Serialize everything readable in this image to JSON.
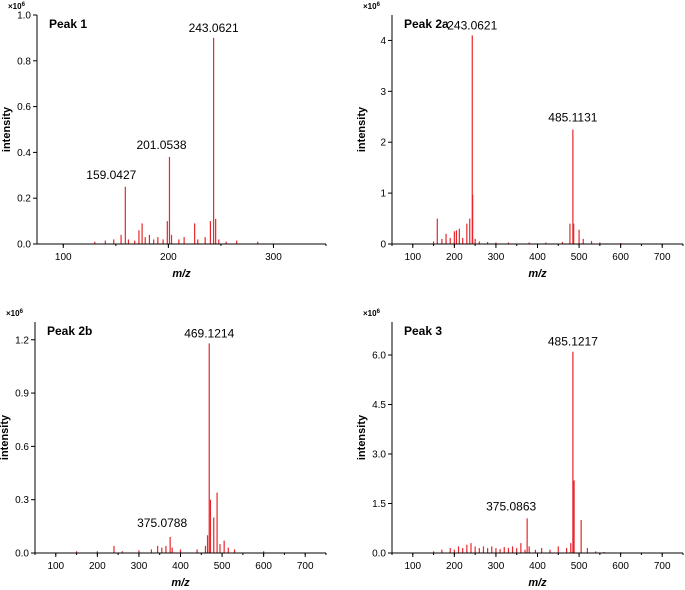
{
  "chart_data": [
    {
      "type": "bar",
      "title": "Peak 1",
      "multiplier": "×10",
      "multiplier_exp": "6",
      "xlabel": "m/z",
      "ylabel": "intensity",
      "xlim": [
        75,
        350
      ],
      "ylim": [
        0,
        1.0
      ],
      "xticks": [
        100,
        200,
        300
      ],
      "yticks": [
        0.0,
        0.2,
        0.4,
        0.6,
        0.8,
        1.0
      ],
      "ytick_labels": [
        "0.0",
        "0.2",
        "0.4",
        "0.6",
        "0.8",
        "1.0"
      ],
      "color": "#e8262a",
      "peaks": [
        [
          130,
          0.01
        ],
        [
          140,
          0.015
        ],
        [
          148,
          0.02
        ],
        [
          155,
          0.04
        ],
        [
          159.0427,
          0.25
        ],
        [
          162,
          0.02
        ],
        [
          168,
          0.015
        ],
        [
          172,
          0.06
        ],
        [
          175,
          0.09
        ],
        [
          178,
          0.03
        ],
        [
          182,
          0.04
        ],
        [
          186,
          0.02
        ],
        [
          190,
          0.03
        ],
        [
          195,
          0.02
        ],
        [
          199,
          0.1
        ],
        [
          201.0538,
          0.38
        ],
        [
          203,
          0.04
        ],
        [
          210,
          0.02
        ],
        [
          215,
          0.03
        ],
        [
          225,
          0.09
        ],
        [
          228,
          0.02
        ],
        [
          235,
          0.03
        ],
        [
          240,
          0.1
        ],
        [
          243.0621,
          0.9
        ],
        [
          245,
          0.11
        ],
        [
          248,
          0.02
        ],
        [
          255,
          0.01
        ],
        [
          265,
          0.015
        ],
        [
          285,
          0.01
        ]
      ],
      "labels": [
        {
          "x": 159.0427,
          "y": 0.25,
          "text": "159.0427"
        },
        {
          "x": 201.0538,
          "y": 0.38,
          "text": "201.0538"
        },
        {
          "x": 243.0621,
          "y": 0.9,
          "text": "243.0621"
        }
      ]
    },
    {
      "type": "bar",
      "title": "Peak 2a",
      "multiplier": "×10",
      "multiplier_exp": "6",
      "xlabel": "m/z",
      "ylabel": "intensity",
      "xlim": [
        50,
        750
      ],
      "ylim": [
        0,
        4.5
      ],
      "xticks": [
        100,
        200,
        300,
        400,
        500,
        600,
        700
      ],
      "yticks": [
        0,
        1,
        2,
        3,
        4
      ],
      "ytick_labels": [
        "0",
        "1",
        "2",
        "3",
        "4"
      ],
      "color": "#e8262a",
      "peaks": [
        [
          150,
          0.05
        ],
        [
          159,
          0.5
        ],
        [
          170,
          0.1
        ],
        [
          180,
          0.2
        ],
        [
          190,
          0.12
        ],
        [
          200,
          0.25
        ],
        [
          205,
          0.27
        ],
        [
          212,
          0.3
        ],
        [
          220,
          0.12
        ],
        [
          230,
          0.4
        ],
        [
          237,
          0.5
        ],
        [
          243.0621,
          4.1
        ],
        [
          244,
          0.97
        ],
        [
          250,
          0.1
        ],
        [
          260,
          0.05
        ],
        [
          280,
          0.04
        ],
        [
          300,
          0.03
        ],
        [
          330,
          0.03
        ],
        [
          380,
          0.03
        ],
        [
          420,
          0.03
        ],
        [
          460,
          0.04
        ],
        [
          478,
          0.4
        ],
        [
          485.1131,
          2.25
        ],
        [
          487,
          0.4
        ],
        [
          500,
          0.28
        ],
        [
          510,
          0.1
        ],
        [
          530,
          0.06
        ],
        [
          550,
          0.03
        ],
        [
          600,
          0.02
        ]
      ],
      "labels": [
        {
          "x": 243.0621,
          "y": 4.1,
          "text": "243.0621"
        },
        {
          "x": 485.1131,
          "y": 2.25,
          "text": "485.1131"
        }
      ]
    },
    {
      "type": "bar",
      "title": "Peak 2b",
      "multiplier": "×10",
      "multiplier_exp": "6",
      "xlabel": "m/z",
      "ylabel": "intensity",
      "xlim": [
        50,
        750
      ],
      "ylim": [
        0,
        1.3
      ],
      "xticks": [
        100,
        200,
        300,
        400,
        500,
        600,
        700
      ],
      "yticks": [
        0.0,
        0.3,
        0.6,
        0.9,
        1.2
      ],
      "ytick_labels": [
        "0.0",
        "0.3",
        "0.6",
        "0.9",
        "1.2"
      ],
      "color": "#e8262a",
      "peaks": [
        [
          150,
          0.01
        ],
        [
          200,
          0.01
        ],
        [
          240,
          0.04
        ],
        [
          260,
          0.01
        ],
        [
          300,
          0.015
        ],
        [
          330,
          0.02
        ],
        [
          345,
          0.04
        ],
        [
          355,
          0.03
        ],
        [
          365,
          0.04
        ],
        [
          375.0788,
          0.09
        ],
        [
          380,
          0.03
        ],
        [
          400,
          0.02
        ],
        [
          440,
          0.02
        ],
        [
          460,
          0.04
        ],
        [
          465,
          0.1
        ],
        [
          469.1214,
          1.18
        ],
        [
          472,
          0.3
        ],
        [
          480,
          0.2
        ],
        [
          488,
          0.34
        ],
        [
          495,
          0.05
        ],
        [
          505,
          0.07
        ],
        [
          515,
          0.03
        ],
        [
          530,
          0.02
        ],
        [
          600,
          0.01
        ]
      ],
      "labels": [
        {
          "x": 469.1214,
          "y": 1.18,
          "text": "469.1214"
        },
        {
          "x": 375.0788,
          "y": 0.09,
          "text": "375.0788"
        }
      ]
    },
    {
      "type": "bar",
      "title": "Peak 3",
      "multiplier": "×10",
      "multiplier_exp": "6",
      "xlabel": "m/z",
      "ylabel": "intensity",
      "xlim": [
        50,
        750
      ],
      "ylim": [
        0,
        7.0
      ],
      "xticks": [
        100,
        200,
        300,
        400,
        500,
        600,
        700
      ],
      "yticks": [
        0.0,
        1.5,
        3.0,
        4.5,
        6.0
      ],
      "ytick_labels": [
        "0.0",
        "1.5",
        "3.0",
        "4.5",
        "6.0"
      ],
      "color": "#e8262a",
      "peaks": [
        [
          150,
          0.05
        ],
        [
          170,
          0.1
        ],
        [
          190,
          0.15
        ],
        [
          200,
          0.1
        ],
        [
          210,
          0.2
        ],
        [
          220,
          0.15
        ],
        [
          230,
          0.25
        ],
        [
          240,
          0.3
        ],
        [
          250,
          0.2
        ],
        [
          260,
          0.15
        ],
        [
          270,
          0.2
        ],
        [
          280,
          0.15
        ],
        [
          290,
          0.2
        ],
        [
          300,
          0.15
        ],
        [
          310,
          0.12
        ],
        [
          320,
          0.18
        ],
        [
          330,
          0.15
        ],
        [
          340,
          0.2
        ],
        [
          350,
          0.15
        ],
        [
          360,
          0.3
        ],
        [
          370,
          0.1
        ],
        [
          375.0863,
          1.05
        ],
        [
          380,
          0.2
        ],
        [
          395,
          0.1
        ],
        [
          410,
          0.15
        ],
        [
          430,
          0.1
        ],
        [
          450,
          0.2
        ],
        [
          470,
          0.15
        ],
        [
          480,
          0.3
        ],
        [
          485.1217,
          6.1
        ],
        [
          488,
          2.2
        ],
        [
          505,
          1.0
        ],
        [
          520,
          0.15
        ],
        [
          540,
          0.05
        ],
        [
          560,
          0.03
        ],
        [
          600,
          0.02
        ]
      ],
      "labels": [
        {
          "x": 485.1217,
          "y": 6.1,
          "text": "485.1217"
        },
        {
          "x": 375.0863,
          "y": 1.05,
          "text": "375.0863"
        }
      ]
    }
  ]
}
